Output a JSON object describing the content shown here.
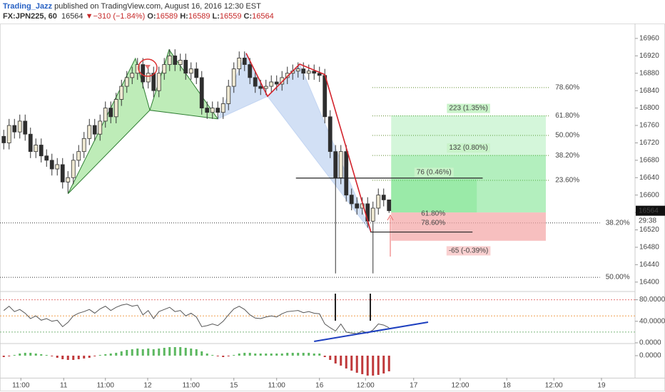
{
  "header": {
    "author": "Trading_Jazz",
    "published": " published on TradingView.com, August 16, 2016 12:30 EST",
    "symbol": "FX:JPN225, 60",
    "arrow": "▼",
    "change": "−310 (−1.84%)",
    "ohlc_labels": [
      "O:",
      "H:",
      "L:",
      "C:"
    ]
  },
  "chart_data": [
    {
      "type": "candlestick",
      "open": [
        16735,
        16720,
        16760,
        16745,
        16770,
        16740,
        16700,
        16715,
        16690,
        16680,
        16660,
        16670,
        16630,
        16640,
        16680,
        16700,
        16730,
        16760,
        16740,
        16770,
        16800,
        16780,
        16820,
        16850,
        16870,
        16880,
        16900,
        16860,
        16880,
        16840,
        16880,
        16900,
        16920,
        16900,
        16910,
        16880,
        16890,
        16870,
        16800,
        16790,
        16800,
        16790,
        16810,
        16850,
        16890,
        16915,
        16900,
        16870,
        16850,
        16845,
        16850,
        16860,
        16855,
        16870,
        16880,
        16885,
        16890,
        16880,
        16885,
        16880,
        16875,
        16780,
        16700,
        16640,
        16700,
        16600,
        16580,
        16570,
        16580,
        16540,
        16570,
        16600,
        16589
      ],
      "high": [
        16750,
        16775,
        16775,
        16785,
        16785,
        16755,
        16730,
        16730,
        16705,
        16695,
        16685,
        16685,
        16655,
        16695,
        16715,
        16745,
        16775,
        16775,
        16785,
        16815,
        16815,
        16835,
        16865,
        16885,
        16895,
        16915,
        16915,
        16895,
        16895,
        16895,
        16915,
        16935,
        16935,
        16925,
        16925,
        16905,
        16905,
        16885,
        16815,
        16815,
        16815,
        16825,
        16865,
        16905,
        16930,
        16930,
        16915,
        16885,
        16865,
        16865,
        16875,
        16875,
        16885,
        16895,
        16900,
        16905,
        16905,
        16900,
        16900,
        16895,
        16890,
        16795,
        16715,
        16715,
        16715,
        16615,
        16595,
        16595,
        16595,
        16585,
        16615,
        16615,
        16589
      ],
      "low": [
        16705,
        16705,
        16730,
        16730,
        16725,
        16685,
        16685,
        16675,
        16665,
        16645,
        16645,
        16615,
        16605,
        16625,
        16665,
        16685,
        16715,
        16725,
        16725,
        16755,
        16765,
        16765,
        16805,
        16835,
        16855,
        16865,
        16845,
        16845,
        16825,
        16825,
        16865,
        16885,
        16885,
        16885,
        16865,
        16865,
        16855,
        16785,
        16775,
        16775,
        16775,
        16775,
        16795,
        16835,
        16875,
        16885,
        16855,
        16835,
        16830,
        16830,
        16835,
        16840,
        16840,
        16855,
        16865,
        16870,
        16865,
        16865,
        16865,
        16860,
        16765,
        16685,
        16420,
        16625,
        16585,
        16565,
        16555,
        16555,
        16525,
        16420,
        16555,
        16574,
        16559
      ],
      "close": [
        16720,
        16760,
        16745,
        16770,
        16740,
        16700,
        16715,
        16690,
        16680,
        16660,
        16670,
        16630,
        16640,
        16680,
        16700,
        16730,
        16760,
        16740,
        16770,
        16800,
        16780,
        16820,
        16850,
        16870,
        16880,
        16900,
        16860,
        16880,
        16840,
        16880,
        16900,
        16920,
        16900,
        16910,
        16880,
        16890,
        16870,
        16800,
        16790,
        16800,
        16790,
        16810,
        16850,
        16890,
        16915,
        16900,
        16870,
        16850,
        16845,
        16850,
        16860,
        16855,
        16870,
        16880,
        16885,
        16890,
        16880,
        16885,
        16880,
        16875,
        16780,
        16700,
        16640,
        16700,
        16600,
        16580,
        16570,
        16580,
        16540,
        16570,
        16600,
        16589,
        16564
      ],
      "up_color": "#efe9d2",
      "down_color": "#2e2e2e",
      "wick_color": "#333333",
      "countdown": "29:38",
      "xlim": [
        -0.7,
        117.97
      ],
      "xticks": [
        {
          "value": 3.2,
          "label": "11:00"
        },
        {
          "value": 11.2,
          "label": "11"
        },
        {
          "value": 19,
          "label": "11:00"
        },
        {
          "value": 26.9,
          "label": "12"
        },
        {
          "value": 35,
          "label": "11:00"
        },
        {
          "value": 43,
          "label": "15"
        },
        {
          "value": 51,
          "label": "11:00"
        },
        {
          "value": 59,
          "label": "16"
        },
        {
          "value": 67.6,
          "label": "12:00"
        },
        {
          "value": 76.6,
          "label": "17"
        },
        {
          "value": 85.3,
          "label": "12:00"
        },
        {
          "value": 94,
          "label": "18"
        },
        {
          "value": 102.8,
          "label": "12:00"
        },
        {
          "value": 111.7,
          "label": "19"
        }
      ],
      "ylim": [
        16380,
        16991
      ],
      "yticks": [
        16400,
        16440,
        16480,
        16520,
        16560,
        16600,
        16640,
        16680,
        16720,
        16760,
        16800,
        16840,
        16880,
        16920,
        16960
      ],
      "patterns": [
        {
          "fill": "#a8e6a0",
          "stroke": "#2e7d32",
          "points": [
            [
              12,
              16603
            ],
            [
              24.6,
              16914
            ],
            [
              27.3,
              16795
            ]
          ]
        },
        {
          "fill": "#a8e6a0",
          "stroke": "#2e7d32",
          "points": [
            [
              27.3,
              16795
            ],
            [
              30.9,
              16934
            ],
            [
              40,
              16775
            ]
          ]
        },
        {
          "fill": "#c3d5f2",
          "stroke": "#c3d5f2",
          "points": [
            [
              40,
              16775
            ],
            [
              45.3,
              16926
            ],
            [
              49.3,
              16827
            ]
          ]
        },
        {
          "fill": "#c3d5f2",
          "stroke": "#c3d5f2",
          "points": [
            [
              49.3,
              16827
            ],
            [
              55.3,
              16901
            ],
            [
              68.6,
              16516
            ]
          ]
        }
      ],
      "polyline": {
        "color": "#d3232c",
        "points": [
          [
            45.3,
            16926
          ],
          [
            49.3,
            16827
          ],
          [
            55.3,
            16901
          ],
          [
            60,
            16877
          ],
          [
            68.6,
            16516
          ]
        ]
      },
      "hlines": [
        {
          "price": 16639,
          "x": [
            54.6,
            89.5
          ],
          "color": "#222222"
        },
        {
          "price": 16515,
          "x": [
            68.5,
            87.6
          ],
          "color": "#222222"
        }
      ],
      "fib_levels": [
        {
          "label": "78.60%",
          "price": 16847,
          "x": [
            68.9,
            102
          ],
          "color": "#5d8a2a"
        },
        {
          "label": "61.80%",
          "price": 16782,
          "x": [
            68.9,
            102
          ],
          "color": "#5d8a2a"
        },
        {
          "label": "50.00%",
          "price": 16737,
          "x": [
            68.9,
            102
          ],
          "color": "#5d8a2a"
        },
        {
          "label": "38.20%",
          "price": 16691,
          "x": [
            68.9,
            102
          ],
          "color": "#5d8a2a"
        },
        {
          "label": "23.60%",
          "price": 16634,
          "x": [
            68.9,
            102
          ],
          "color": "#5d8a2a"
        },
        {
          "label": "38.20%",
          "price": 16536,
          "x": [
            -0.7,
            111.4
          ],
          "color": "#333333"
        },
        {
          "label": "50.00%",
          "price": 16411,
          "x": [
            -0.7,
            111.4
          ],
          "color": "#333333"
        }
      ],
      "point_labels": [
        {
          "label": "61.80%",
          "x": 78,
          "price": 16557,
          "color": "#a33333"
        },
        {
          "label": "78.60%",
          "x": 78,
          "price": 16536,
          "color": "#a33333"
        }
      ],
      "position": {
        "x": [
          72.4,
          101.3
        ],
        "entry": 16560,
        "target_color": "#4cd964",
        "stop_color": "#f4a4a4",
        "targets": [
          {
            "price": 16783,
            "label": "223 (1.35%)",
            "x_end": 101.3
          },
          {
            "price": 16692,
            "label": "132 (0.80%)",
            "x_end": 101.3
          },
          {
            "price": 16636,
            "label": "76 (0.46%)",
            "x_end": 88.4
          }
        ],
        "stop": {
          "price": 16495,
          "label": "-65 (-0.39%)",
          "x_end": 101.3
        }
      }
    },
    {
      "type": "line",
      "color": "#555555",
      "values": [
        60,
        68,
        58,
        62,
        55,
        45,
        50,
        42,
        45,
        40,
        42,
        30,
        38,
        50,
        55,
        58,
        62,
        55,
        63,
        68,
        60,
        66,
        70,
        72,
        68,
        70,
        52,
        60,
        45,
        58,
        62,
        66,
        58,
        60,
        50,
        55,
        48,
        30,
        32,
        35,
        32,
        40,
        52,
        63,
        68,
        62,
        52,
        46,
        45,
        48,
        50,
        48,
        54,
        58,
        59,
        60,
        56,
        58,
        55,
        54,
        35,
        28,
        22,
        35,
        20,
        18,
        17,
        22,
        18,
        24,
        35,
        33,
        28
      ],
      "ylim": [
        0,
        94
      ],
      "yticks": [
        {
          "value": 0,
          "label": "0.0000"
        },
        {
          "value": 40,
          "label": "40.0000"
        },
        {
          "value": 80,
          "label": "80.0000"
        }
      ],
      "levels": [
        {
          "value": 80,
          "color": "#e57373"
        },
        {
          "value": 50,
          "color": "#f0a050"
        },
        {
          "value": 20,
          "color": "#7cb87c"
        }
      ],
      "trendline": {
        "color": "#1d3fbf",
        "points": [
          [
            58,
            2.6
          ],
          [
            79.3,
            38.4
          ]
        ]
      }
    },
    {
      "type": "bar",
      "pos_color": "#5cb860",
      "neg_color": "#c0393b",
      "values": [
        -2,
        -1,
        1,
        3,
        4,
        4,
        3,
        2,
        1,
        -1,
        -3,
        -5,
        -6,
        -6,
        -5,
        -4,
        -3,
        -1,
        1,
        2,
        3,
        4,
        6,
        8,
        9,
        10,
        9,
        10,
        9,
        10,
        11,
        12,
        12,
        12,
        11,
        10,
        9,
        6,
        3,
        1,
        -1,
        -2,
        -1,
        1,
        3,
        4,
        4,
        3,
        3,
        3,
        3,
        3,
        3,
        4,
        4,
        4,
        4,
        4,
        3,
        3,
        -2,
        -6,
        -11,
        -14,
        -18,
        -21,
        -24,
        -26,
        -28,
        -28,
        -27,
        -25,
        -22
      ],
      "ylim": [
        -31,
        16
      ],
      "yticks": [
        {
          "value": 0,
          "label": "0.0000"
        }
      ]
    }
  ]
}
